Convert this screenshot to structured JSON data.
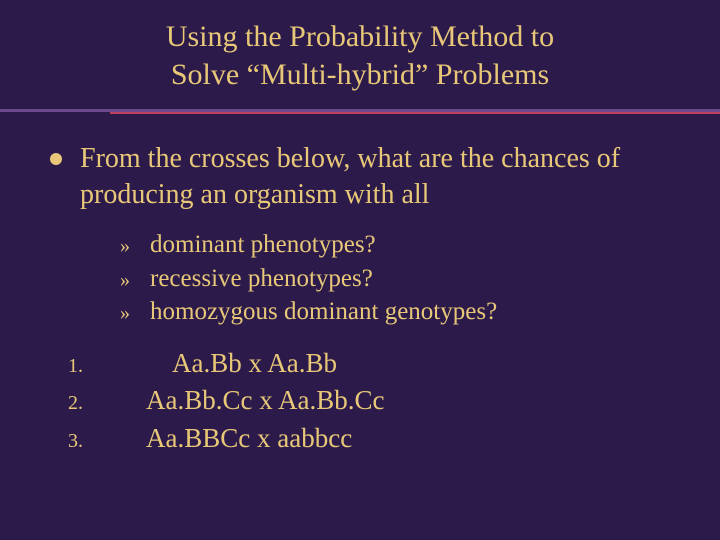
{
  "colors": {
    "background": "#2c1a4a",
    "text": "#e8c878",
    "divider_top": "#6a4a8a",
    "divider_bottom": "#c04060"
  },
  "title": {
    "line1": "Using the Probability Method to",
    "line2": "Solve “Multi-hybrid” Problems"
  },
  "main_bullet": "From the crosses below, what are the chances of producing an organism with all",
  "sub_items": [
    {
      "marker": "»",
      "text": "dominant phenotypes?"
    },
    {
      "marker": "»",
      "text": "recessive phenotypes?"
    },
    {
      "marker": "»",
      "text": "homozygous dominant genotypes?"
    }
  ],
  "numbered": [
    {
      "marker": "1.",
      "text": "Aa.Bb  x  Aa.Bb"
    },
    {
      "marker": "2.",
      "text": "Aa.Bb.Cc  x   Aa.Bb.Cc"
    },
    {
      "marker": "3.",
      "text": "Aa.BBCc x aabbcc"
    }
  ]
}
